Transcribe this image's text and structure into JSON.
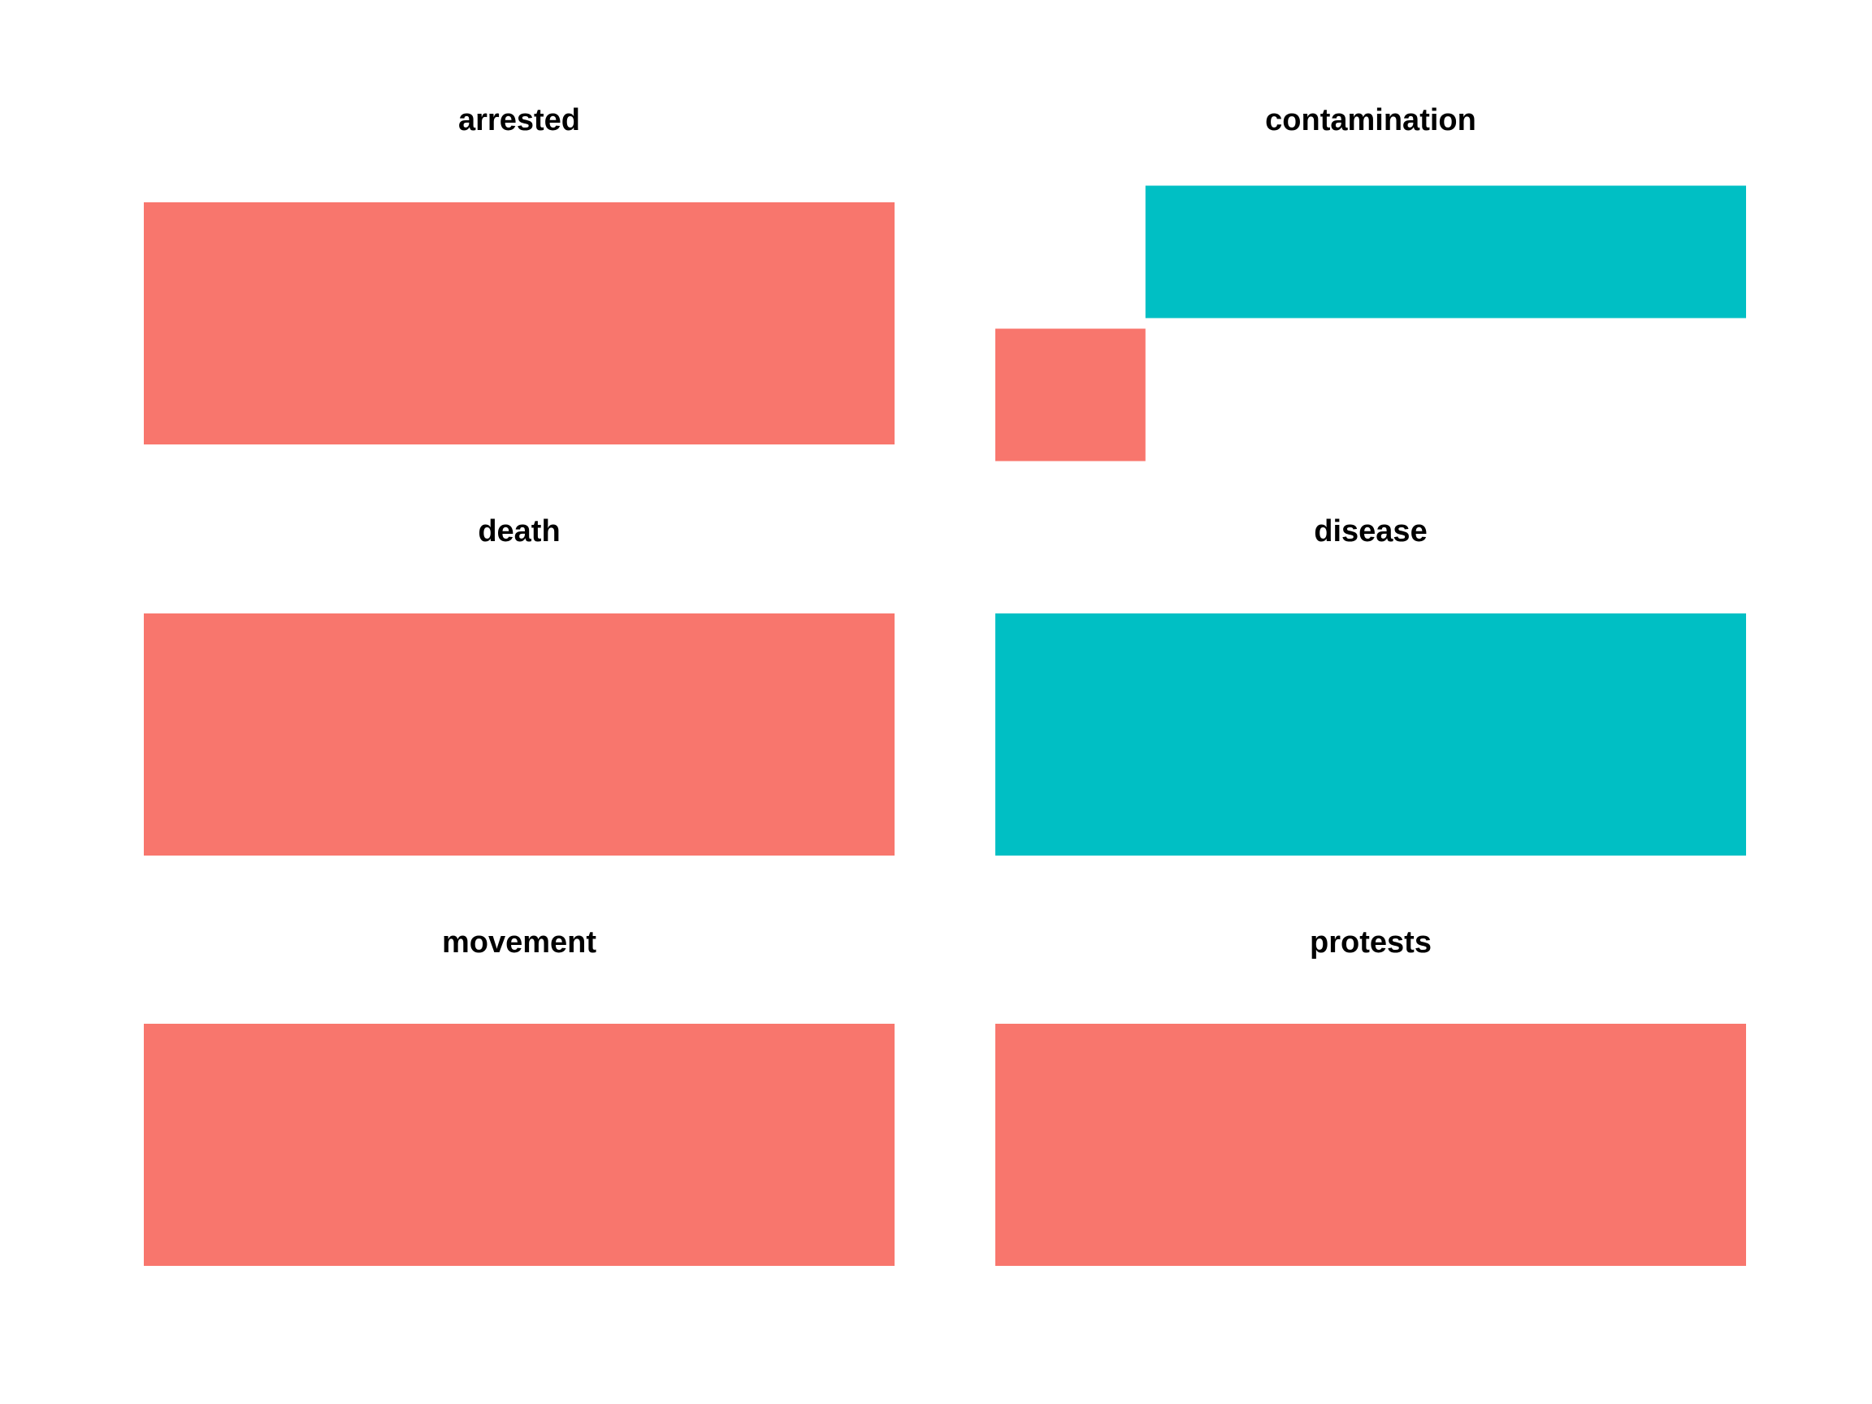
{
  "colors": {
    "series_a": "#F8766D",
    "series_b": "#00BFC4",
    "background": "#FFFFFF"
  },
  "chart_data": {
    "type": "bar",
    "orientation": "horizontal",
    "facet_layout": "3 rows x 2 columns",
    "axes_shown": false,
    "grid": false,
    "legend": "none",
    "title": "",
    "xlabel": "",
    "ylabel": "",
    "panels": [
      {
        "title": "arrested",
        "xlim": [
          0,
          1
        ],
        "bars": [
          {
            "series": "a",
            "value": 1.0,
            "color": "#F8766D"
          }
        ]
      },
      {
        "title": "contamination",
        "xlim": [
          0,
          1
        ],
        "bars": [
          {
            "series": "b",
            "start": 0.2,
            "value": 1.0,
            "color": "#00BFC4"
          },
          {
            "series": "a",
            "start": 0.0,
            "value": 0.2,
            "color": "#F8766D"
          }
        ]
      },
      {
        "title": "death",
        "xlim": [
          0,
          1
        ],
        "bars": [
          {
            "series": "a",
            "value": 1.0,
            "color": "#F8766D"
          }
        ]
      },
      {
        "title": "disease",
        "xlim": [
          0,
          1
        ],
        "bars": [
          {
            "series": "b",
            "value": 1.0,
            "color": "#00BFC4"
          }
        ]
      },
      {
        "title": "movement",
        "xlim": [
          0,
          1
        ],
        "bars": [
          {
            "series": "a",
            "value": 1.0,
            "color": "#F8766D"
          }
        ]
      },
      {
        "title": "protests",
        "xlim": [
          0,
          1
        ],
        "bars": [
          {
            "series": "a",
            "value": 1.0,
            "color": "#F8766D"
          }
        ]
      }
    ]
  }
}
